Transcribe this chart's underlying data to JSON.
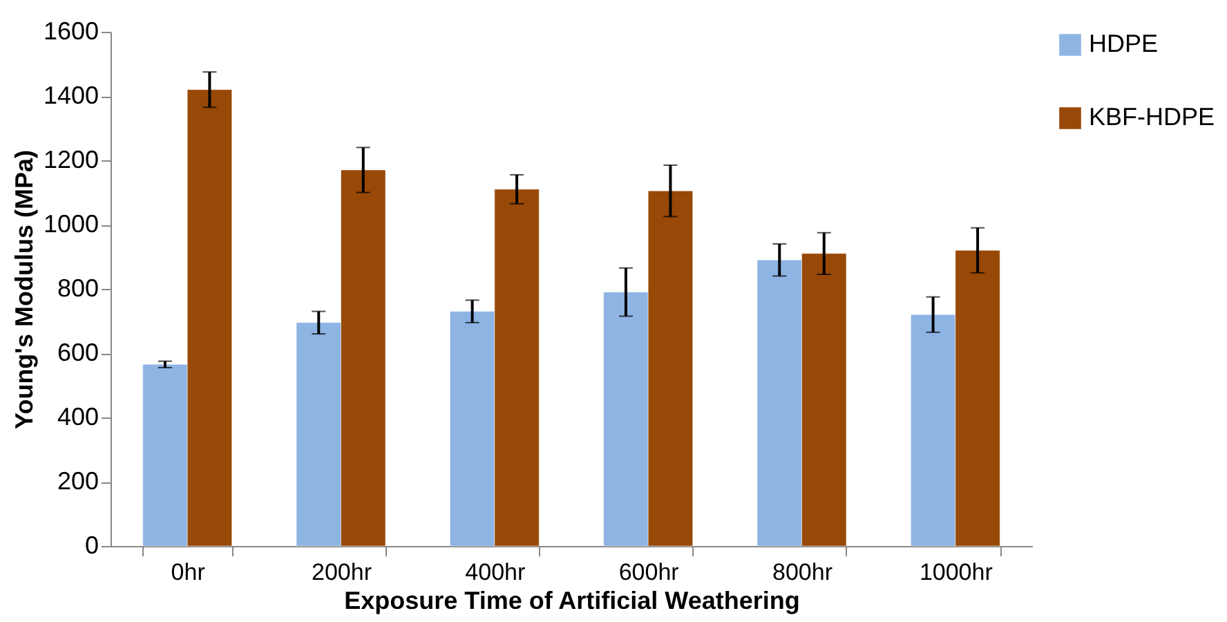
{
  "chart_data": {
    "type": "bar",
    "xlabel": "Exposure Time of Artificial Weathering",
    "ylabel": "Young's Modulus (MPa)",
    "categories": [
      "0hr",
      "200hr",
      "400hr",
      "600hr",
      "800hr",
      "1000hr"
    ],
    "series": [
      {
        "name": "HDPE",
        "color": "#8eb4e3",
        "values": [
          565,
          695,
          730,
          790,
          890,
          720
        ],
        "errors": [
          10,
          35,
          35,
          75,
          50,
          55
        ]
      },
      {
        "name": "KBF-HDPE",
        "color": "#984807",
        "values": [
          1420,
          1170,
          1110,
          1105,
          910,
          920
        ],
        "errors": [
          55,
          70,
          45,
          80,
          65,
          70
        ]
      }
    ],
    "ylim": [
      0,
      1600
    ],
    "yticks": [
      0,
      200,
      400,
      600,
      800,
      1000,
      1200,
      1400,
      1600
    ],
    "grid": false,
    "legend": "right"
  }
}
